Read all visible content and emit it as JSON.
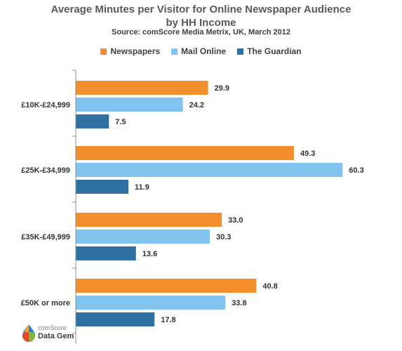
{
  "chart_data": {
    "type": "bar",
    "orientation": "horizontal",
    "title_line1": "Average Minutes per Visitor for Online Newspaper Audience",
    "title_line2": "by HH Income",
    "subtitle": "Source: comScore Media Metrix, UK, March 2012",
    "categories": [
      "£10K-£24,999",
      "£25K-£34,999",
      "£35K-£49,999",
      "£50K or more"
    ],
    "series": [
      {
        "name": "Newspapers",
        "color": "#f28e2b",
        "values": [
          29.9,
          49.3,
          33.0,
          40.8
        ]
      },
      {
        "name": "Mail Online",
        "color": "#7fc3ee",
        "values": [
          24.2,
          60.3,
          30.3,
          33.8
        ]
      },
      {
        "name": "The Guardian",
        "color": "#3071a4",
        "values": [
          7.5,
          11.9,
          13.6,
          17.8
        ]
      }
    ],
    "xlim": [
      0,
      65
    ],
    "grid": false,
    "legend_position": "top"
  },
  "logo": {
    "line1": "comScore",
    "line2": "Data Gem"
  }
}
